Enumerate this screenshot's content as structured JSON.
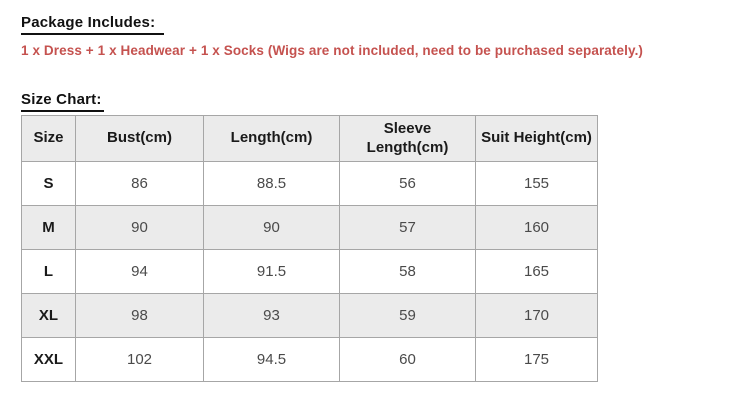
{
  "package": {
    "heading": "Package Includes:",
    "note": "1 x Dress + 1 x Headwear + 1 x Socks (Wigs are not included, need to be purchased separately.)"
  },
  "size_chart": {
    "heading": "Size Chart:"
  },
  "colors": {
    "note_red": "#c5524f",
    "table_border": "#a6a6a6",
    "row_alt_bg": "#ebebeb",
    "heading_text": "#111111"
  },
  "chart_data": {
    "type": "table",
    "columns": [
      "Size",
      "Bust(cm)",
      "Length(cm)",
      "Sleeve Length(cm)",
      "Suit Height(cm)"
    ],
    "rows": [
      [
        "S",
        "86",
        "88.5",
        "56",
        "155"
      ],
      [
        "M",
        "90",
        "90",
        "57",
        "160"
      ],
      [
        "L",
        "94",
        "91.5",
        "58",
        "165"
      ],
      [
        "XL",
        "98",
        "93",
        "59",
        "170"
      ],
      [
        "XXL",
        "102",
        "94.5",
        "60",
        "175"
      ]
    ]
  }
}
